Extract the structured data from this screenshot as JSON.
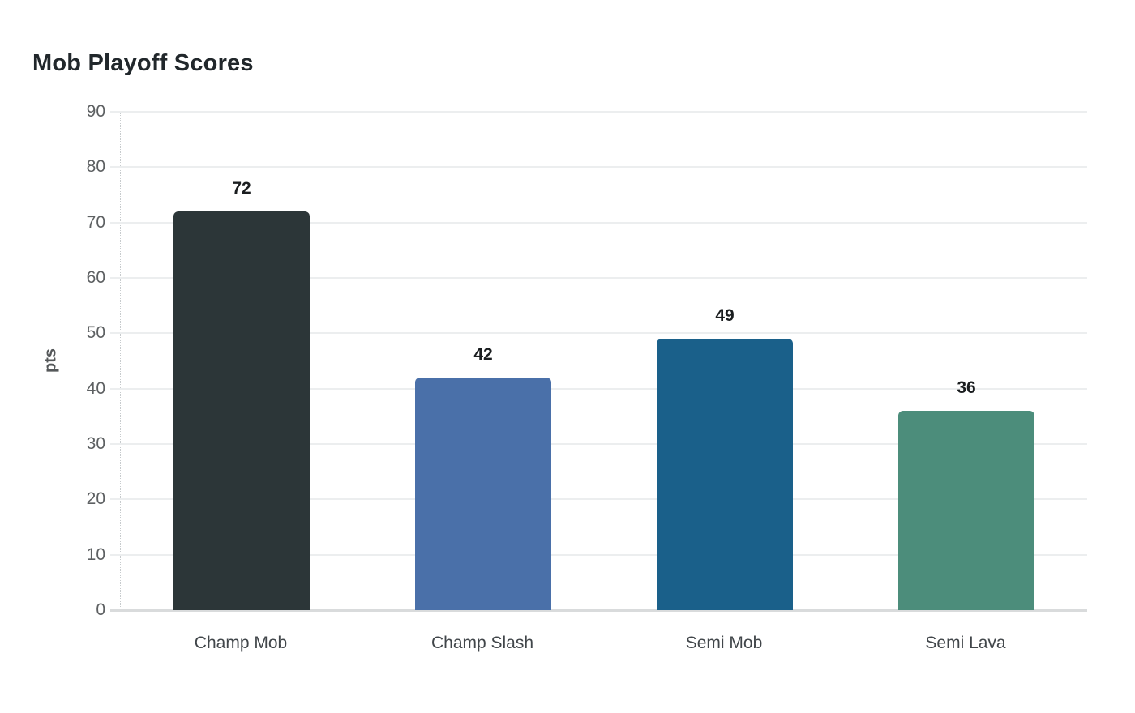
{
  "chart_data": {
    "type": "bar",
    "title": "Mob Playoff Scores",
    "xlabel": "",
    "ylabel": "pts",
    "categories": [
      "Champ Mob",
      "Champ Slash",
      "Semi Mob",
      "Semi Lava"
    ],
    "values": [
      72,
      42,
      49,
      36
    ],
    "value_labels": [
      "72",
      "42",
      "49",
      "36"
    ],
    "bar_colors": [
      "#2c3638",
      "#4a70a9",
      "#1a608a",
      "#4c8d7b"
    ],
    "ylim": [
      0,
      90
    ],
    "yticks": [
      0,
      10,
      20,
      30,
      40,
      50,
      60,
      70,
      80,
      90
    ],
    "grid": "horizontal",
    "legend": "none"
  },
  "colors": {
    "background": "#ffffff",
    "title_text": "#21272b",
    "tick_text": "#5d6062",
    "category_text": "#41464a",
    "value_label_text": "#1a1d1f",
    "gridline": "#eceeef",
    "bottom_axis": "#d9dbdc"
  }
}
